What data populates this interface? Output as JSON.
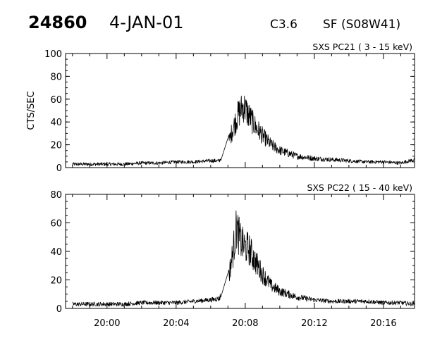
{
  "header": {
    "event_number": "24860",
    "date": "4-JAN-01",
    "flare_class": "C3.6",
    "region": "SF (S08W41)"
  },
  "chart_data": [
    {
      "type": "line",
      "title": "SXS PC21  (  3 - 15 keV)",
      "ylabel": "CTS/SEC",
      "xlabel": "",
      "x_unit": "time (UT, HH:MM)",
      "xlim": [
        "19:57.6",
        "20:17.8"
      ],
      "ylim": [
        0,
        100
      ],
      "y_ticks": [
        "0",
        "20",
        "40",
        "60",
        "80",
        "100"
      ],
      "x_ticks": [
        "20:00",
        "20:04",
        "20:08",
        "20:12",
        "20:16"
      ],
      "grid": false,
      "series": [
        {
          "x": [
            "19:58",
            "19:59",
            "20:00",
            "20:01",
            "20:02",
            "20:03",
            "20:04",
            "20:05",
            "20:06",
            "20:06.5",
            "20:07",
            "20:07.3",
            "20:07.6",
            "20:07.9",
            "20:08.2",
            "20:08.5",
            "20:09",
            "20:09.5",
            "20:10",
            "20:11",
            "20:12",
            "20:13",
            "20:14",
            "20:15",
            "20:16",
            "20:17",
            "20:17.8"
          ],
          "y": [
            3,
            3,
            3,
            3,
            4,
            4,
            5,
            5,
            6,
            6,
            20,
            35,
            47,
            54,
            46,
            38,
            28,
            20,
            15,
            10,
            8,
            7,
            6,
            5,
            5,
            4,
            7
          ]
        }
      ]
    },
    {
      "type": "line",
      "title": "SXS PC22  ( 15 - 40 keV)",
      "ylabel": "",
      "xlabel": "",
      "x_unit": "time (UT, HH:MM)",
      "xlim": [
        "19:57.6",
        "20:17.8"
      ],
      "ylim": [
        0,
        80
      ],
      "y_ticks": [
        "0",
        "20",
        "40",
        "60",
        "80"
      ],
      "x_ticks": [
        "20:00",
        "20:04",
        "20:08",
        "20:12",
        "20:16"
      ],
      "grid": false,
      "series": [
        {
          "x": [
            "19:58",
            "19:59",
            "20:00",
            "20:01",
            "20:02",
            "20:03",
            "20:04",
            "20:05",
            "20:06",
            "20:06.5",
            "20:07",
            "20:07.3",
            "20:07.5",
            "20:07.7",
            "20:07.9",
            "20:08.2",
            "20:08.5",
            "20:09",
            "20:09.5",
            "20:10",
            "20:11",
            "20:12",
            "20:13",
            "20:14",
            "20:15",
            "20:16",
            "20:17",
            "20:17.8"
          ],
          "y": [
            3,
            3,
            3,
            3,
            4,
            4,
            4,
            5,
            6,
            7,
            20,
            40,
            57,
            48,
            44,
            42,
            35,
            24,
            16,
            12,
            8,
            6,
            5,
            5,
            5,
            4,
            4,
            3
          ]
        }
      ]
    }
  ]
}
